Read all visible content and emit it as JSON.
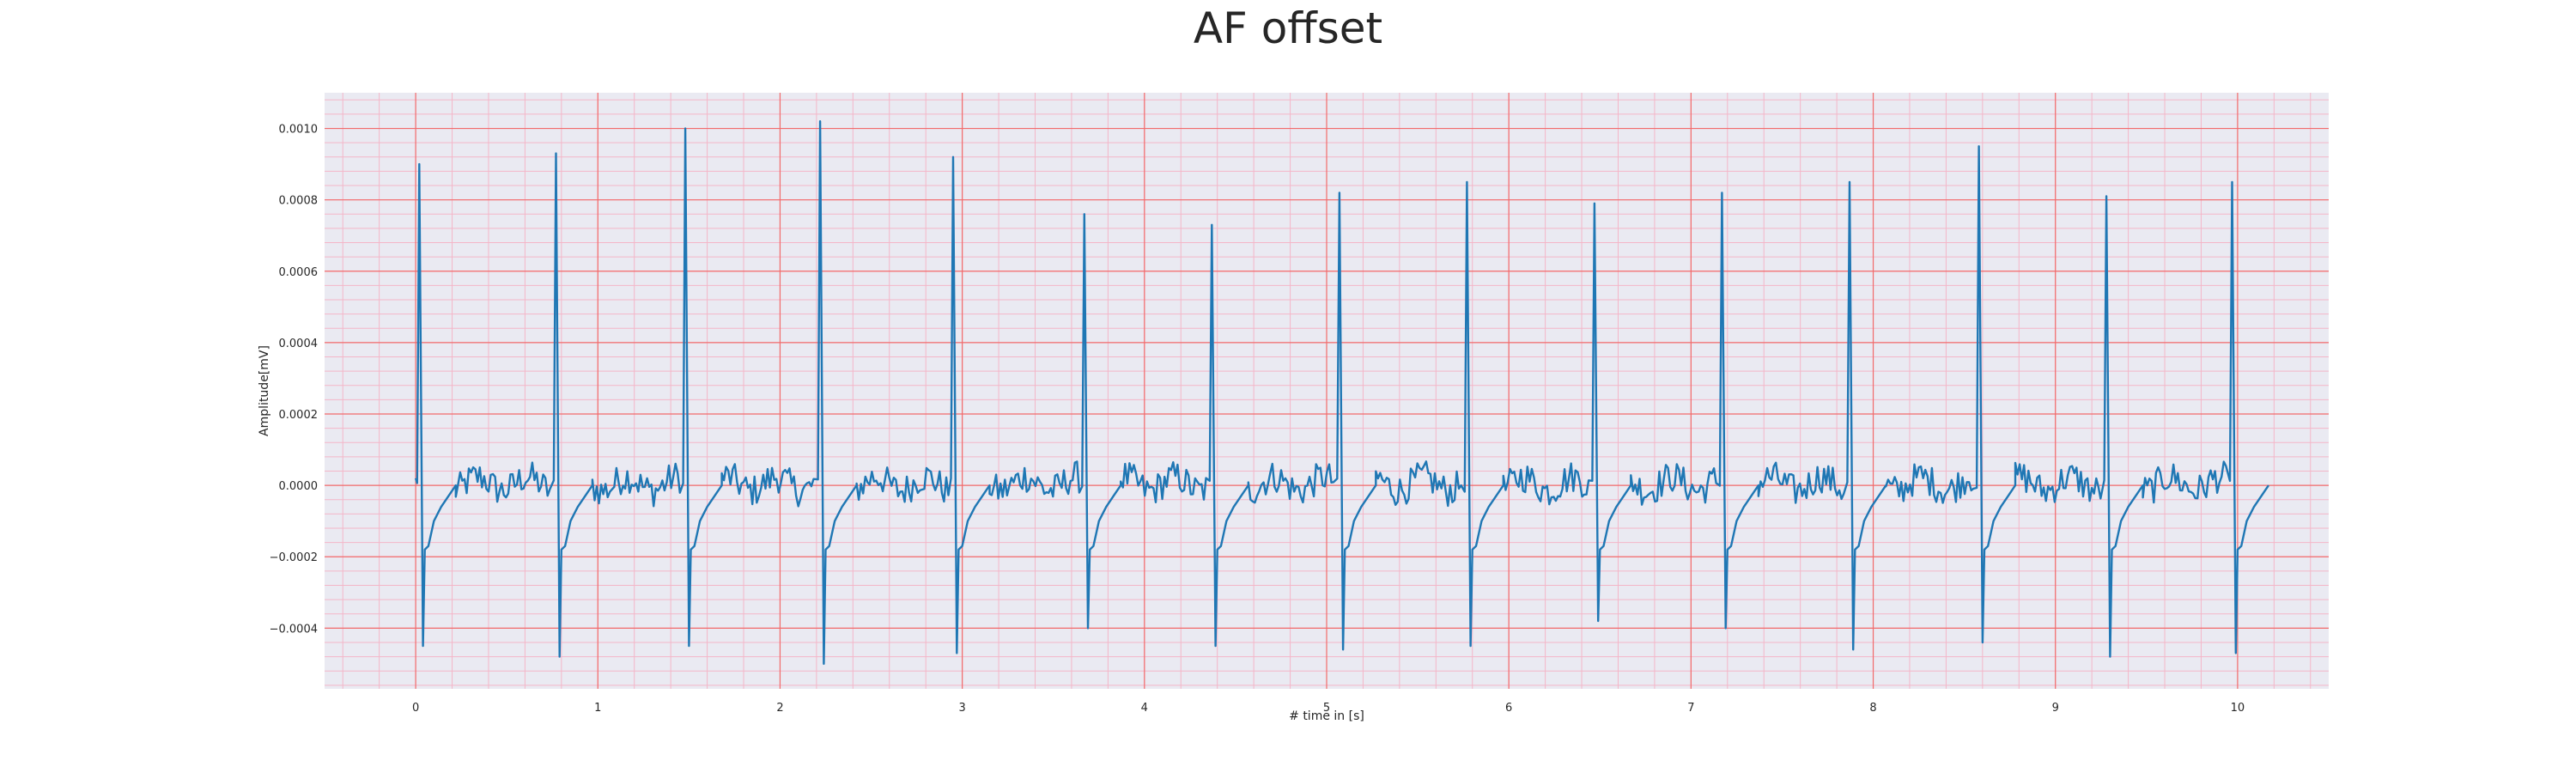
{
  "chart_data": {
    "type": "line",
    "title": "AF offset",
    "xlabel": "# time in [s]",
    "ylabel": "Amplitude[mV]",
    "xlim": [
      -0.5,
      10.5
    ],
    "ylim": [
      -0.00057,
      0.0011
    ],
    "x_ticks": [
      0,
      1,
      2,
      3,
      4,
      5,
      6,
      7,
      8,
      9,
      10
    ],
    "y_ticks": [
      -0.0004,
      -0.0002,
      0.0,
      0.0002,
      0.0004,
      0.0006,
      0.0008,
      0.001
    ],
    "y_tick_labels": [
      "−0.0004",
      "−0.0002",
      "0.0000",
      "0.0002",
      "0.0004",
      "0.0006",
      "0.0008",
      "0.0010"
    ],
    "grid": true,
    "minor_grid": true,
    "r_peaks": [
      {
        "t": 0.02,
        "peak": 0.0009,
        "trough": -0.00045
      },
      {
        "t": 0.77,
        "peak": 0.00093,
        "trough": -0.00048
      },
      {
        "t": 1.48,
        "peak": 0.001,
        "trough": -0.00045
      },
      {
        "t": 2.22,
        "peak": 0.00102,
        "trough": -0.0005
      },
      {
        "t": 2.95,
        "peak": 0.00092,
        "trough": -0.00047
      },
      {
        "t": 3.67,
        "peak": 0.00076,
        "trough": -0.0004
      },
      {
        "t": 4.37,
        "peak": 0.00073,
        "trough": -0.00045
      },
      {
        "t": 5.07,
        "peak": 0.00082,
        "trough": -0.00046
      },
      {
        "t": 5.77,
        "peak": 0.00085,
        "trough": -0.00045
      },
      {
        "t": 6.47,
        "peak": 0.00079,
        "trough": -0.00038
      },
      {
        "t": 7.17,
        "peak": 0.00082,
        "trough": -0.0004
      },
      {
        "t": 7.87,
        "peak": 0.00085,
        "trough": -0.00046
      },
      {
        "t": 8.58,
        "peak": 0.00095,
        "trough": -0.00044
      },
      {
        "t": 9.28,
        "peak": 0.00081,
        "trough": -0.00048
      },
      {
        "t": 9.97,
        "peak": 0.00085,
        "trough": -0.00047
      }
    ],
    "start_value": 2e-05,
    "baseline": 0.0,
    "series_color": "#1f77b4"
  },
  "colors": {
    "plot_background": "#eaeaf2",
    "major_grid": "#f26b6b",
    "minor_grid": "#f4b6c8"
  }
}
